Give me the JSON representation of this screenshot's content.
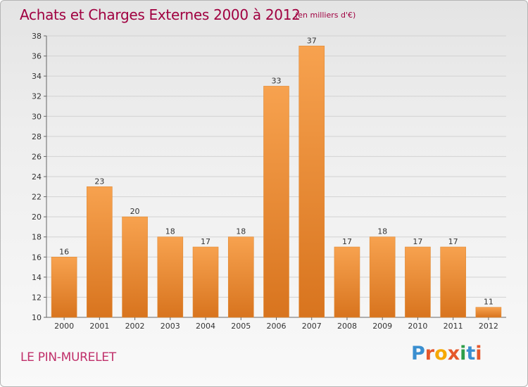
{
  "header": {
    "title": "Achats et Charges Externes 2000 à 2012",
    "unit": "(en milliers d'€)"
  },
  "footer": {
    "commune": "LE PIN-MURELET",
    "logo": {
      "letters": [
        "P",
        "r",
        "o",
        "x",
        "i",
        "t",
        "i"
      ],
      "colors": [
        "#3a8fd0",
        "#e5572b",
        "#f6a800",
        "#e5572b",
        "#2e9e4a",
        "#3a8fd0",
        "#e5572b"
      ]
    }
  },
  "colors": {
    "bar_light": "#f7a24f",
    "bar_dark": "#d8741e",
    "title": "#a00040"
  },
  "chart_data": {
    "type": "bar",
    "categories": [
      "2000",
      "2001",
      "2002",
      "2003",
      "2004",
      "2005",
      "2006",
      "2007",
      "2008",
      "2009",
      "2010",
      "2011",
      "2012"
    ],
    "values": [
      16,
      23,
      20,
      18,
      17,
      18,
      33,
      37,
      17,
      18,
      17,
      17,
      11
    ],
    "ylim": [
      10,
      38
    ],
    "yticks": [
      10,
      12,
      14,
      16,
      18,
      20,
      22,
      24,
      26,
      28,
      30,
      32,
      34,
      36,
      38
    ],
    "grid": true
  }
}
